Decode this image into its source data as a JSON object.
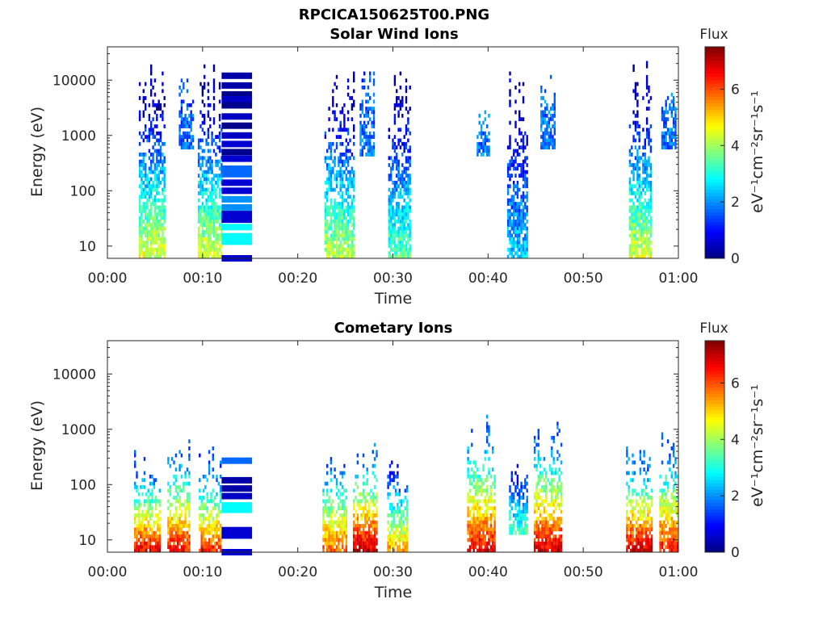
{
  "figure": {
    "title": "RPCICA150625T00.PNG"
  },
  "chart_data": [
    {
      "type": "heatmap",
      "title": "Solar Wind Ions",
      "xlabel": "Time",
      "ylabel": "Energy (eV)",
      "x_ticks": [
        "00:00",
        "00:10",
        "00:20",
        "00:30",
        "00:40",
        "00:50",
        "01:00"
      ],
      "x_range_minutes": [
        0,
        60
      ],
      "y_scale": "log",
      "y_ticks": [
        "10",
        "100",
        "1000",
        "10000"
      ],
      "y_range": [
        6,
        40000
      ],
      "colorbar": {
        "label_top": "Flux",
        "label_side": "eV⁻¹cm⁻²sr⁻¹s⁻¹",
        "ticks": [
          "0",
          "2",
          "4",
          "6"
        ],
        "range": [
          0,
          7.5
        ],
        "colormap": "jet"
      },
      "grid": false,
      "bursts": [
        {
          "t_start": 3.3,
          "t_end": 6.0,
          "e_min": 6,
          "e_max": 35000,
          "flux_low": 4.5,
          "flux_high": 0.3
        },
        {
          "t_start": 7.5,
          "t_end": 9.0,
          "e_min": 600,
          "e_max": 12000,
          "flux_low": 1.8,
          "flux_high": 1.5
        },
        {
          "t_start": 9.5,
          "t_end": 12.0,
          "e_min": 6,
          "e_max": 30000,
          "flux_low": 4.5,
          "flux_high": 0.3
        },
        {
          "t_start": 22.8,
          "t_end": 25.8,
          "e_min": 6,
          "e_max": 35000,
          "flux_low": 4.2,
          "flux_high": 0.3
        },
        {
          "t_start": 26.5,
          "t_end": 28.0,
          "e_min": 400,
          "e_max": 25000,
          "flux_low": 1.8,
          "flux_high": 1.5
        },
        {
          "t_start": 29.5,
          "t_end": 31.8,
          "e_min": 6,
          "e_max": 30000,
          "flux_low": 3.5,
          "flux_high": 0.3
        },
        {
          "t_start": 38.8,
          "t_end": 40.2,
          "e_min": 400,
          "e_max": 3000,
          "flux_low": 1.8,
          "flux_high": 1.8
        },
        {
          "t_start": 42.0,
          "t_end": 44.2,
          "e_min": 6,
          "e_max": 25000,
          "flux_low": 2.5,
          "flux_high": 0.3
        },
        {
          "t_start": 45.5,
          "t_end": 47.0,
          "e_min": 600,
          "e_max": 15000,
          "flux_low": 1.8,
          "flux_high": 1.8
        },
        {
          "t_start": 54.8,
          "t_end": 57.2,
          "e_min": 6,
          "e_max": 30000,
          "flux_low": 4.5,
          "flux_high": 0.3
        },
        {
          "t_start": 58.2,
          "t_end": 59.8,
          "e_min": 600,
          "e_max": 15000,
          "flux_low": 1.8,
          "flux_high": 1.8
        }
      ],
      "bands": {
        "t_start": 12.0,
        "t_end": 15.2,
        "levels": [
          {
            "energy": 12000,
            "flux": 0.3
          },
          {
            "energy": 8000,
            "flux": 0.3
          },
          {
            "energy": 5500,
            "flux": 0.1
          },
          {
            "energy": 4500,
            "flux": 0.5
          },
          {
            "energy": 3500,
            "flux": 0.1
          },
          {
            "energy": 2200,
            "flux": 0.5
          },
          {
            "energy": 1500,
            "flux": 0.1
          },
          {
            "energy": 1000,
            "flux": 0.5
          },
          {
            "energy": 700,
            "flux": 0.6
          },
          {
            "energy": 500,
            "flux": 0.1
          },
          {
            "energy": 380,
            "flux": 0.6
          },
          {
            "energy": 250,
            "flux": 1.7
          },
          {
            "energy": 200,
            "flux": 1.7
          },
          {
            "energy": 140,
            "flux": 0.6
          },
          {
            "energy": 100,
            "flux": 0.6
          },
          {
            "energy": 70,
            "flux": 2.0
          },
          {
            "energy": 50,
            "flux": 2.0
          },
          {
            "energy": 38,
            "flux": 0.6
          },
          {
            "energy": 30,
            "flux": 0.6
          },
          {
            "energy": 22,
            "flux": 2.8
          },
          {
            "energy": 15,
            "flux": 2.8
          },
          {
            "energy": 12,
            "flux": 2.8
          },
          {
            "energy": 6,
            "flux": 0.6
          }
        ]
      }
    },
    {
      "type": "heatmap",
      "title": "Cometary Ions",
      "xlabel": "Time",
      "ylabel": "Energy (eV)",
      "x_ticks": [
        "00:00",
        "00:10",
        "00:20",
        "00:30",
        "00:40",
        "00:50",
        "01:00"
      ],
      "x_range_minutes": [
        0,
        60
      ],
      "y_scale": "log",
      "y_ticks": [
        "10",
        "100",
        "1000",
        "10000"
      ],
      "y_range": [
        6,
        40000
      ],
      "colorbar": {
        "label_top": "Flux",
        "label_side": "eV⁻¹cm⁻²sr⁻¹s⁻¹",
        "ticks": [
          "0",
          "2",
          "4",
          "6"
        ],
        "range": [
          0,
          7.5
        ],
        "colormap": "jet"
      },
      "grid": false,
      "bursts": [
        {
          "t_start": 2.8,
          "t_end": 5.6,
          "e_min": 6,
          "e_max": 450,
          "flux_low": 6.8,
          "flux_high": 1.5
        },
        {
          "t_start": 6.3,
          "t_end": 8.6,
          "e_min": 6,
          "e_max": 1200,
          "flux_low": 6.6,
          "flux_high": 1.5
        },
        {
          "t_start": 9.6,
          "t_end": 11.8,
          "e_min": 6,
          "e_max": 500,
          "flux_low": 6.4,
          "flux_high": 1.5
        },
        {
          "t_start": 22.6,
          "t_end": 25.0,
          "e_min": 6,
          "e_max": 500,
          "flux_low": 6.0,
          "flux_high": 1.8
        },
        {
          "t_start": 25.8,
          "t_end": 28.2,
          "e_min": 6,
          "e_max": 800,
          "flux_low": 7.2,
          "flux_high": 1.8
        },
        {
          "t_start": 29.4,
          "t_end": 31.5,
          "e_min": 6,
          "e_max": 350,
          "flux_low": 5.5,
          "flux_high": 1.2
        },
        {
          "t_start": 37.8,
          "t_end": 40.8,
          "e_min": 6,
          "e_max": 2200,
          "flux_low": 6.8,
          "flux_high": 1.8
        },
        {
          "t_start": 42.2,
          "t_end": 44.2,
          "e_min": 12,
          "e_max": 400,
          "flux_low": 3.5,
          "flux_high": 0.8
        },
        {
          "t_start": 44.8,
          "t_end": 47.8,
          "e_min": 6,
          "e_max": 1700,
          "flux_low": 7.0,
          "flux_high": 1.8
        },
        {
          "t_start": 54.5,
          "t_end": 57.2,
          "e_min": 6,
          "e_max": 550,
          "flux_low": 7.2,
          "flux_high": 1.8
        },
        {
          "t_start": 58.0,
          "t_end": 60.0,
          "e_min": 6,
          "e_max": 1100,
          "flux_low": 6.6,
          "flux_high": 1.8
        }
      ],
      "bands": {
        "t_start": 12.0,
        "t_end": 15.2,
        "levels": [
          {
            "energy": 270,
            "flux": 1.7
          },
          {
            "energy": 120,
            "flux": 0.3
          },
          {
            "energy": 85,
            "flux": 0.3
          },
          {
            "energy": 62,
            "flux": 0.5
          },
          {
            "energy": 42,
            "flux": 2.8
          },
          {
            "energy": 35,
            "flux": 2.8
          },
          {
            "energy": 15,
            "flux": 0.6
          },
          {
            "energy": 12,
            "flux": 0.6
          },
          {
            "energy": 6,
            "flux": 0.6
          }
        ]
      }
    }
  ]
}
